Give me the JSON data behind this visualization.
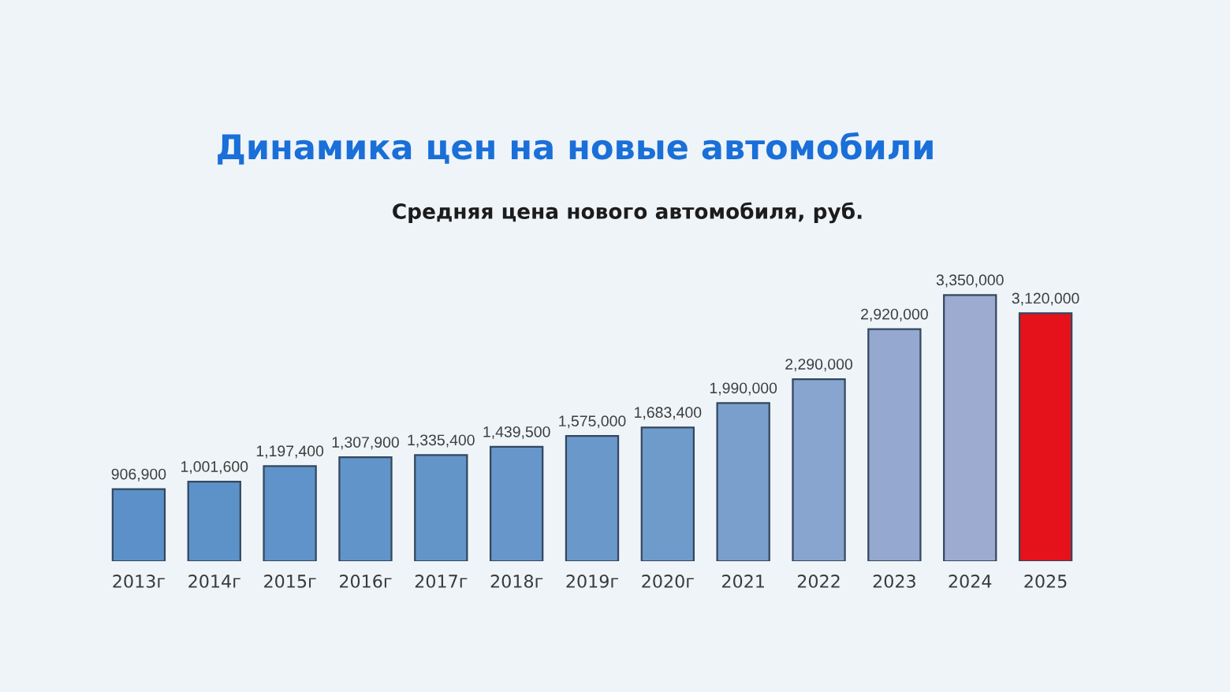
{
  "chart_data": {
    "type": "bar",
    "title": "Динамика цен на новые автомобили",
    "subtitle": "Средняя цена нового автомобиля, руб.",
    "categories": [
      "2013г",
      "2014г",
      "2015г",
      "2016г",
      "2017г",
      "2018г",
      "2019г",
      "2020г",
      "2021",
      "2022",
      "2023",
      "2024",
      "2025"
    ],
    "values": [
      906900,
      1001600,
      1197400,
      1307900,
      1335400,
      1439500,
      1575000,
      1683400,
      1990000,
      2290000,
      2920000,
      3350000,
      3120000
    ],
    "colors": [
      "#5b91c8",
      "#5d92c9",
      "#5f93c9",
      "#6194c9",
      "#6395c9",
      "#6696ca",
      "#6a98ca",
      "#6f9bcb",
      "#7a9fcd",
      "#88a5cf",
      "#94a8d0",
      "#9eabd1",
      "#e5121b"
    ],
    "value_labels": [
      "906,900",
      "1,001,600",
      "1,197,400",
      "1,307,900",
      "1,335,400",
      "1,439,500",
      "1,575,000",
      "1,683,400",
      "1,990,000",
      "2,290,000",
      "2,920,000",
      "3,350,000",
      "3,120,000"
    ],
    "tick_labels": "x",
    "grid": false,
    "legend": false
  }
}
